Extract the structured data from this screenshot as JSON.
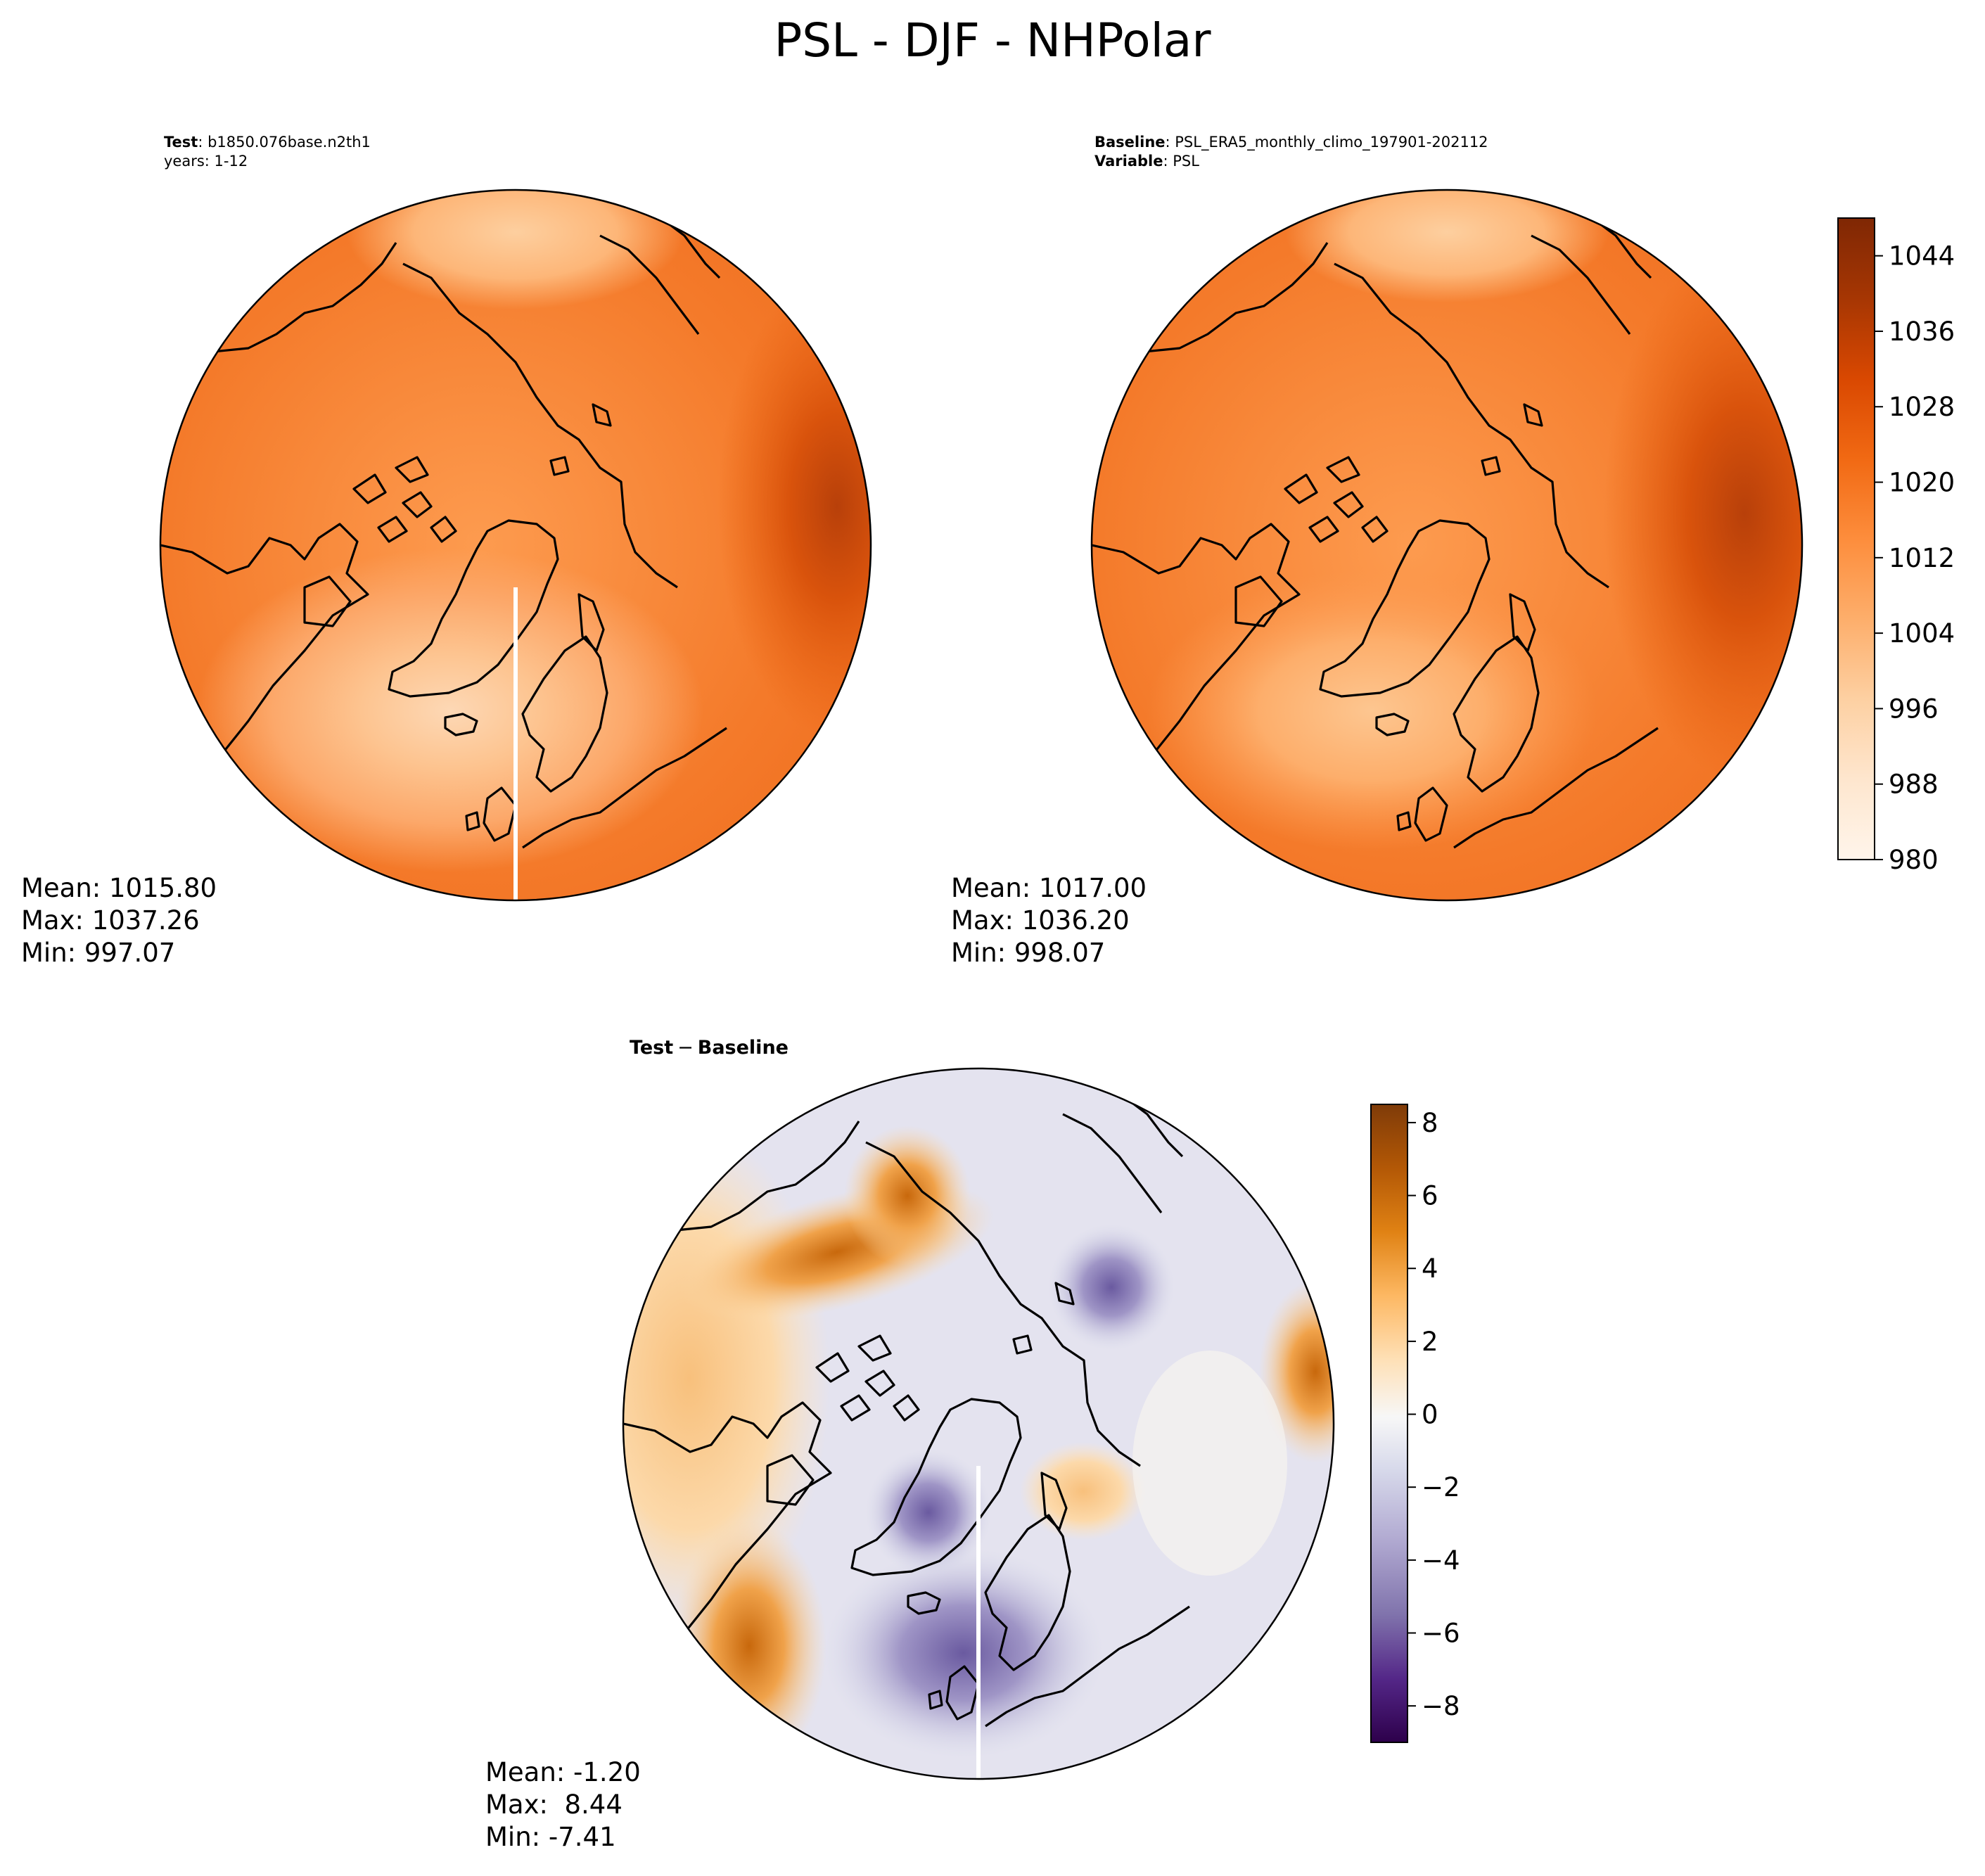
{
  "figure": {
    "title": "PSL - DJF - NHPolar"
  },
  "colors": {
    "oranges": [
      "#fff5eb",
      "#fee6ce",
      "#fdd0a2",
      "#fdae6b",
      "#fd8d3c",
      "#f16913",
      "#d94801",
      "#a63603",
      "#7f2704"
    ],
    "diff": [
      "#2d004b",
      "#542788",
      "#8073ac",
      "#b2abd2",
      "#d8daeb",
      "#f7f7f7",
      "#fee0b6",
      "#fdb863",
      "#e08214",
      "#b35806",
      "#7f3b08"
    ],
    "coast": "#000000",
    "frame": "#000000"
  },
  "chart_data": [
    {
      "type": "heatmap",
      "name": "test",
      "projection": "north polar stereographic",
      "header_key_1": "Test",
      "header_val_1": ": b1850.076base.n2th1",
      "header_line_2": "years: 1-12",
      "stats": {
        "mean": "Mean: 1015.80",
        "max": "Max: 1037.26",
        "min": "Min: 997.07"
      },
      "value_range": [
        997.07,
        1037.26
      ],
      "colormap": "Oranges"
    },
    {
      "type": "heatmap",
      "name": "baseline",
      "projection": "north polar stereographic",
      "header_key_1": "Baseline",
      "header_val_1": ": PSL_ERA5_monthly_climo_197901-202112",
      "header_key_2": "Variable",
      "header_val_2": ": PSL",
      "stats": {
        "mean": "Mean: 1017.00",
        "max": "Max: 1036.20",
        "min": "Min: 998.07"
      },
      "value_range": [
        998.07,
        1036.2
      ],
      "colormap": "Oranges",
      "colorbar": {
        "range": [
          980,
          1048
        ],
        "ticks": [
          980,
          988,
          996,
          1004,
          1012,
          1020,
          1028,
          1036,
          1044
        ],
        "tick_labels": [
          "980",
          "988",
          "996",
          "1004",
          "1012",
          "1020",
          "1028",
          "1036",
          "1044"
        ]
      }
    },
    {
      "type": "heatmap",
      "name": "difference",
      "projection": "north polar stereographic",
      "header_key_1": "Test",
      "header_op": "−",
      "header_key_1b": "Baseline",
      "stats": {
        "mean": "Mean: -1.20",
        "max": "Max:  8.44",
        "min": "Min: -7.41"
      },
      "value_range": [
        -7.41,
        8.44
      ],
      "colormap": "PuOr_r",
      "colorbar": {
        "range": [
          -9,
          8.5
        ],
        "ticks": [
          -8,
          -6,
          -4,
          -2,
          0,
          2,
          4,
          6,
          8
        ],
        "tick_labels": [
          "−8",
          "−6",
          "−4",
          "−2",
          "0",
          "2",
          "4",
          "6",
          "8"
        ]
      }
    }
  ]
}
